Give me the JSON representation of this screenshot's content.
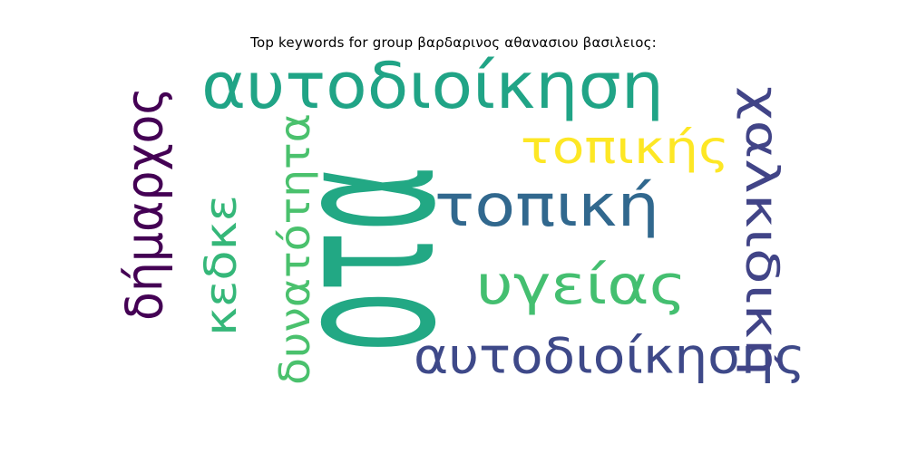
{
  "chart_data": {
    "type": "wordcloud",
    "title": "Top keywords for group βαρδαρινος αθανασιου βασιλειος:",
    "words": [
      {
        "text": "οτα",
        "color": "#22a884"
      },
      {
        "text": "αυτοδιοίκηση",
        "color": "#20a486"
      },
      {
        "text": "τοπική",
        "color": "#31688e"
      },
      {
        "text": "υγείας",
        "color": "#44bf70"
      },
      {
        "text": "αυτοδιοίκησης",
        "color": "#3e4989"
      },
      {
        "text": "τοπικής",
        "color": "#fde725"
      },
      {
        "text": "δήμαρχος",
        "color": "#440154"
      },
      {
        "text": "κεδκε",
        "color": "#35b779"
      },
      {
        "text": "δυνατότητα",
        "color": "#4ac16d"
      },
      {
        "text": "χαλκιδική",
        "color": "#414487"
      }
    ]
  }
}
